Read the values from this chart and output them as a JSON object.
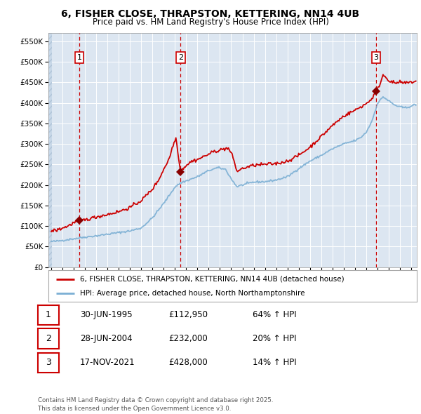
{
  "title": "6, FISHER CLOSE, THRAPSTON, KETTERING, NN14 4UB",
  "subtitle": "Price paid vs. HM Land Registry's House Price Index (HPI)",
  "bg_color": "#dce6f1",
  "grid_color": "#ffffff",
  "red_line_color": "#cc0000",
  "blue_line_color": "#7bafd4",
  "sale_marker_color": "#880000",
  "vline_color": "#cc0000",
  "sale_years": [
    1995.496,
    2004.493,
    2021.878
  ],
  "sale_prices": [
    112950,
    232000,
    428000
  ],
  "sale_labels": [
    "1",
    "2",
    "3"
  ],
  "legend_line1": "6, FISHER CLOSE, THRAPSTON, KETTERING, NN14 4UB (detached house)",
  "legend_line2": "HPI: Average price, detached house, North Northamptonshire",
  "table_rows": [
    [
      "1",
      "30-JUN-1995",
      "£112,950",
      "64% ↑ HPI"
    ],
    [
      "2",
      "28-JUN-2004",
      "£232,000",
      "20% ↑ HPI"
    ],
    [
      "3",
      "17-NOV-2021",
      "£428,000",
      "14% ↑ HPI"
    ]
  ],
  "footer": "Contains HM Land Registry data © Crown copyright and database right 2025.\nThis data is licensed under the Open Government Licence v3.0.",
  "ylim": [
    0,
    570000
  ],
  "yticks": [
    0,
    50000,
    100000,
    150000,
    200000,
    250000,
    300000,
    350000,
    400000,
    450000,
    500000,
    550000
  ],
  "ytick_labels": [
    "£0",
    "£50K",
    "£100K",
    "£150K",
    "£200K",
    "£250K",
    "£300K",
    "£350K",
    "£400K",
    "£450K",
    "£500K",
    "£550K"
  ],
  "xlim_start": 1992.75,
  "xlim_end": 2025.5
}
